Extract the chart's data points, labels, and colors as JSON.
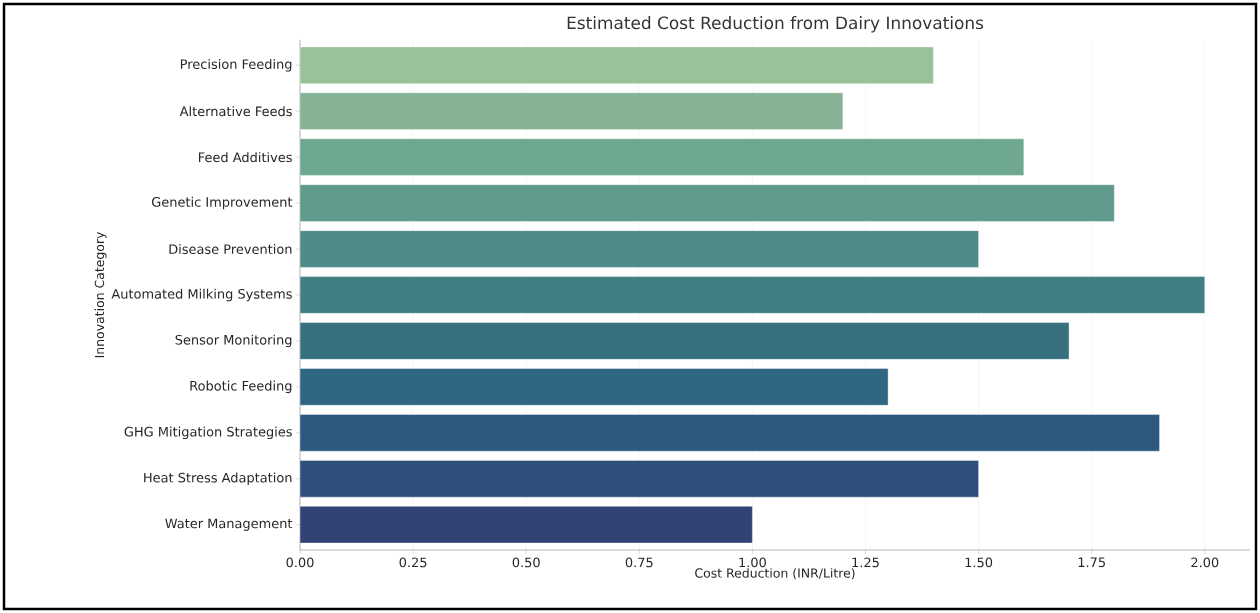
{
  "chart_data": {
    "type": "bar",
    "orientation": "horizontal",
    "title": "Estimated Cost Reduction from Dairy Innovations",
    "xlabel": "Cost Reduction (INR/Litre)",
    "ylabel": "Innovation Category",
    "categories": [
      "Precision Feeding",
      "Alternative Feeds",
      "Feed Additives",
      "Genetic Improvement",
      "Disease Prevention",
      "Automated Milking Systems",
      "Sensor Monitoring",
      "Robotic Feeding",
      "GHG Mitigation Strategies",
      "Heat Stress Adaptation",
      "Water Management"
    ],
    "values": [
      1.4,
      1.2,
      1.6,
      1.8,
      1.5,
      2.0,
      1.7,
      1.3,
      1.9,
      1.5,
      1.0
    ],
    "colors": [
      "#97c29a",
      "#86b394",
      "#6ea891",
      "#5f9a8c",
      "#4f8b87",
      "#417e82",
      "#37717f",
      "#2f6681",
      "#2d597e",
      "#2e4e7c",
      "#334274"
    ],
    "xlim": [
      0,
      2.1
    ],
    "xticks": [
      {
        "value": 0,
        "label": "0.00"
      },
      {
        "value": 0.25,
        "label": "0.25"
      },
      {
        "value": 0.5,
        "label": "0.50"
      },
      {
        "value": 0.75,
        "label": "0.75"
      },
      {
        "value": 1.0,
        "label": "1.00"
      },
      {
        "value": 1.25,
        "label": "1.25"
      },
      {
        "value": 1.5,
        "label": "1.50"
      },
      {
        "value": 1.75,
        "label": "1.75"
      },
      {
        "value": 2.0,
        "label": "2.00"
      }
    ],
    "grid": "x"
  }
}
